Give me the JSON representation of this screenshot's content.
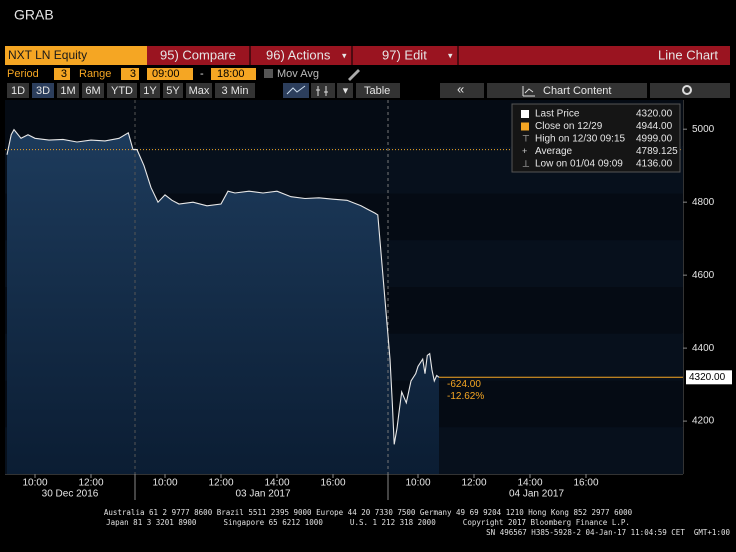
{
  "header": "GRAB",
  "toolbar": {
    "security": "NXT LN Equity",
    "menu": [
      "95) Compare",
      "96) Actions",
      "97) Edit"
    ],
    "chart_type": "Line Chart"
  },
  "settings": {
    "period_label": "Period",
    "period": "3",
    "range_label": "Range",
    "range": "3",
    "start": "09:00",
    "dash": "-",
    "end": "18:00",
    "mov_avg": "Mov Avg"
  },
  "ranges": [
    "1D",
    "3D",
    "1M",
    "6M",
    "YTD",
    "1Y",
    "5Y",
    "Max",
    "3 Min"
  ],
  "selected_range": "3D",
  "table_button": "Table",
  "chart_content": "Chart Content",
  "chart": {
    "type": "line",
    "ylim": [
      4055,
      5080
    ],
    "yticks": [
      4200,
      4400,
      4600,
      4800,
      5000
    ],
    "legend": [
      {
        "label": "Last Price",
        "value": 4320,
        "value_label": "4320.00"
      },
      {
        "label": "Close on 12/29",
        "value": 4944,
        "value_label": "4944.00"
      },
      {
        "label": "High on 12/30 09:15",
        "value": 4999,
        "value_label": "4999.00"
      },
      {
        "label": "Average",
        "value": 4789.125
      },
      {
        "label": "Low on 01/04 09:09",
        "value": 4136,
        "value_label": "4136.00"
      }
    ],
    "annotations": [
      "-624.00",
      "-12.62%"
    ],
    "sessions": [
      {
        "date": "30 Dec 2016",
        "ticks": [
          "10:00",
          "12:00"
        ],
        "x": [
          "09:00",
          "09:09",
          "09:15",
          "09:30",
          "09:45",
          "10:00",
          "10:30",
          "11:00",
          "11:30",
          "12:00",
          "12:30",
          "13:00",
          "13:20",
          "13:30"
        ],
        "values": [
          4930,
          4985,
          4999,
          4975,
          4985,
          4975,
          4970,
          4972,
          4965,
          4970,
          4968,
          4975,
          4990,
          4944
        ]
      },
      {
        "date": "03 Jan 2017",
        "ticks": [
          "10:00",
          "12:00",
          "14:00",
          "16:00"
        ],
        "x": [
          "09:00",
          "09:15",
          "09:30",
          "09:45",
          "10:00",
          "10:15",
          "10:30",
          "11:00",
          "11:30",
          "12:00",
          "12:15",
          "12:30",
          "13:00",
          "13:30",
          "14:00",
          "14:30",
          "15:00",
          "15:30",
          "16:00",
          "16:30",
          "17:00",
          "17:15",
          "17:30",
          "17:36"
        ],
        "values": [
          4944,
          4900,
          4840,
          4800,
          4820,
          4805,
          4795,
          4800,
          4790,
          4795,
          4830,
          4825,
          4830,
          4825,
          4830,
          4815,
          4810,
          4812,
          4808,
          4805,
          4790,
          4780,
          4770,
          4765
        ]
      },
      {
        "date": "04 Jan 2017",
        "ticks": [
          "10:00",
          "12:00",
          "14:00",
          "16:00"
        ],
        "x": [
          "09:00",
          "09:05",
          "09:09",
          "09:15",
          "09:20",
          "09:25",
          "09:35",
          "09:45",
          "09:55",
          "10:00",
          "10:10",
          "10:15",
          "10:20",
          "10:25",
          "10:30",
          "10:35",
          "10:40",
          "10:45"
        ],
        "values": [
          4370,
          4250,
          4136,
          4180,
          4230,
          4280,
          4250,
          4310,
          4330,
          4350,
          4370,
          4330,
          4380,
          4385,
          4340,
          4310,
          4325,
          4320
        ]
      }
    ]
  },
  "footer": [
    "Australia 61 2 9777 8600 Brazil 5511 2395 9000 Europe 44 20 7330 7500 Germany 49 69 9204 1210 Hong Kong 852 2977 6000",
    "Japan 81 3 3201 8900      Singapore 65 6212 1000      U.S. 1 212 318 2000      Copyright 2017 Bloomberg Finance L.P.",
    "SN 496567 H385-5928-2 04-Jan-17 11:04:59 CET  GMT+1:00"
  ]
}
